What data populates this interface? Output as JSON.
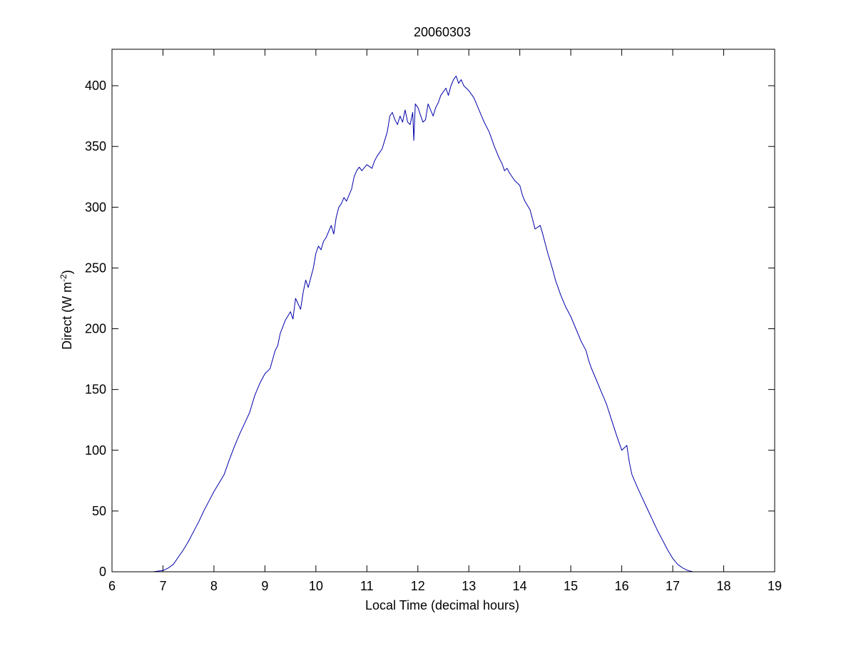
{
  "chart_data": {
    "type": "line",
    "title": "20060303",
    "xlabel": "Local Time (decimal hours)",
    "ylabel": {
      "text": "Direct (W m",
      "superscript": "-2",
      "suffix": ")"
    },
    "xlim": [
      6,
      19
    ],
    "ylim": [
      0,
      430
    ],
    "x_ticks": [
      6,
      7,
      8,
      9,
      10,
      11,
      12,
      13,
      14,
      15,
      16,
      17,
      18,
      19
    ],
    "y_ticks": [
      0,
      50,
      100,
      150,
      200,
      250,
      300,
      350,
      400
    ],
    "grid": false,
    "series": [
      {
        "color": "#0000aa",
        "x": [
          6.8,
          7.0,
          7.1,
          7.2,
          7.3,
          7.4,
          7.5,
          7.6,
          7.7,
          7.8,
          7.9,
          8.0,
          8.1,
          8.2,
          8.3,
          8.4,
          8.5,
          8.6,
          8.7,
          8.8,
          8.9,
          9.0,
          9.1,
          9.2,
          9.25,
          9.3,
          9.4,
          9.5,
          9.55,
          9.6,
          9.7,
          9.75,
          9.8,
          9.85,
          9.9,
          9.95,
          10.0,
          10.05,
          10.1,
          10.15,
          10.2,
          10.3,
          10.35,
          10.4,
          10.45,
          10.5,
          10.55,
          10.6,
          10.7,
          10.75,
          10.8,
          10.85,
          10.9,
          11.0,
          11.1,
          11.15,
          11.2,
          11.25,
          11.3,
          11.35,
          11.4,
          11.45,
          11.5,
          11.55,
          11.6,
          11.65,
          11.7,
          11.75,
          11.8,
          11.85,
          11.9,
          11.92,
          11.95,
          12.0,
          12.1,
          12.15,
          12.2,
          12.3,
          12.35,
          12.4,
          12.45,
          12.5,
          12.55,
          12.6,
          12.65,
          12.7,
          12.75,
          12.8,
          12.85,
          12.9,
          13.0,
          13.1,
          13.2,
          13.3,
          13.4,
          13.5,
          13.6,
          13.65,
          13.7,
          13.75,
          13.8,
          13.9,
          14.0,
          14.05,
          14.1,
          14.2,
          14.25,
          14.3,
          14.4,
          14.45,
          14.5,
          14.55,
          14.6,
          14.65,
          14.7,
          14.8,
          14.9,
          15.0,
          15.1,
          15.2,
          15.3,
          15.35,
          15.4,
          15.5,
          15.6,
          15.7,
          15.8,
          15.9,
          16.0,
          16.1,
          16.12,
          16.15,
          16.2,
          16.3,
          16.4,
          16.5,
          16.6,
          16.7,
          16.8,
          16.9,
          17.0,
          17.1,
          17.2,
          17.3,
          17.4,
          17.5,
          17.6,
          17.7,
          17.8
        ],
        "y": [
          0,
          1,
          3,
          6,
          12,
          18,
          25,
          33,
          41,
          50,
          58,
          66,
          73,
          80,
          92,
          103,
          113,
          122,
          131,
          145,
          155,
          163,
          167,
          182,
          186,
          196,
          207,
          214,
          208,
          225,
          216,
          230,
          240,
          234,
          242,
          250,
          262,
          268,
          265,
          272,
          275,
          285,
          278,
          292,
          300,
          303,
          308,
          305,
          315,
          325,
          330,
          333,
          330,
          335,
          332,
          338,
          342,
          345,
          348,
          355,
          362,
          375,
          378,
          372,
          368,
          375,
          370,
          380,
          370,
          368,
          378,
          355,
          385,
          382,
          370,
          372,
          385,
          375,
          382,
          386,
          392,
          395,
          398,
          392,
          400,
          405,
          408,
          402,
          405,
          400,
          396,
          390,
          380,
          370,
          362,
          350,
          340,
          336,
          330,
          332,
          328,
          322,
          318,
          310,
          305,
          298,
          290,
          282,
          285,
          278,
          270,
          262,
          255,
          248,
          240,
          228,
          218,
          210,
          200,
          190,
          182,
          174,
          168,
          158,
          148,
          138,
          125,
          112,
          100,
          104,
          98,
          90,
          80,
          70,
          61,
          52,
          43,
          34,
          26,
          18,
          11,
          6,
          3,
          1,
          0,
          0,
          0,
          0,
          0
        ]
      }
    ]
  }
}
